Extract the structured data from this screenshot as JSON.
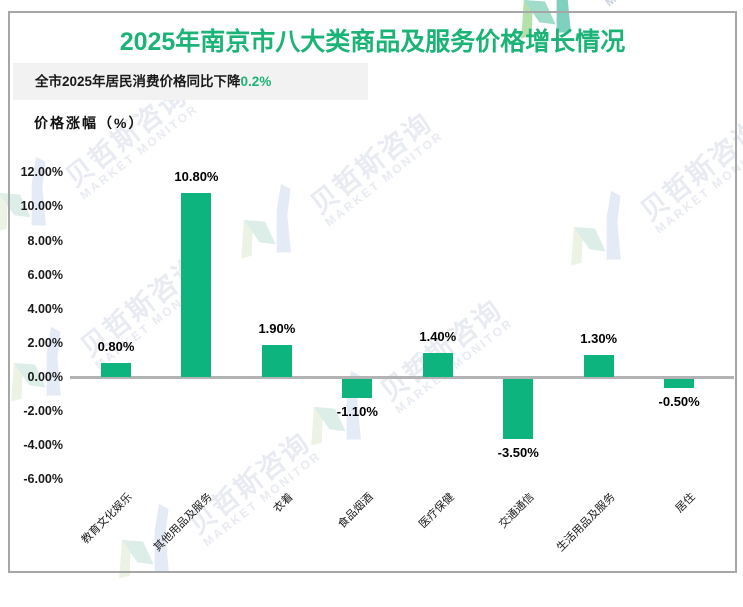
{
  "title": "2025年南京市八大类商品及服务价格增长情况",
  "subtitle": {
    "text": "全市2025年居民消费价格同比下降",
    "highlight": "0.2%"
  },
  "axis_title": "价格涨幅（%）",
  "watermark": {
    "cn": "贝哲斯咨询",
    "en": "MARKET MONITOR"
  },
  "colors": {
    "title_green": "#1cb476",
    "bar_green": "#0db47e",
    "subtitle_bg": "#f2f2f2",
    "axis_line": "#b3b3b3",
    "frame_border": "#a6a6a6"
  },
  "chart_data": {
    "type": "bar",
    "title": "2025年南京市八大类商品及服务价格增长情况",
    "ylabel": "价格涨幅（%）",
    "categories": [
      "教育文化娱乐",
      "其他用品及服务",
      "衣着",
      "食品烟酒",
      "医疗保健",
      "交通通信",
      "生活用品及服务",
      "居住"
    ],
    "values": [
      0.8,
      10.8,
      1.9,
      -1.1,
      1.4,
      -3.5,
      1.3,
      -0.5
    ],
    "value_labels": [
      "0.80%",
      "10.80%",
      "1.90%",
      "-1.10%",
      "1.40%",
      "-3.50%",
      "1.30%",
      "-0.50%"
    ],
    "ytick_values": [
      12,
      10,
      8,
      6,
      4,
      2,
      0,
      -2,
      -4,
      -6
    ],
    "ytick_labels": [
      "12.00%",
      "10.00%",
      "8.00%",
      "6.00%",
      "4.00%",
      "2.00%",
      "0.00%",
      "-2.00%",
      "-4.00%",
      "-6.00%"
    ],
    "ylim": [
      -6,
      12
    ],
    "grid": false,
    "legend": "none",
    "bar_color": "#0db47e"
  }
}
